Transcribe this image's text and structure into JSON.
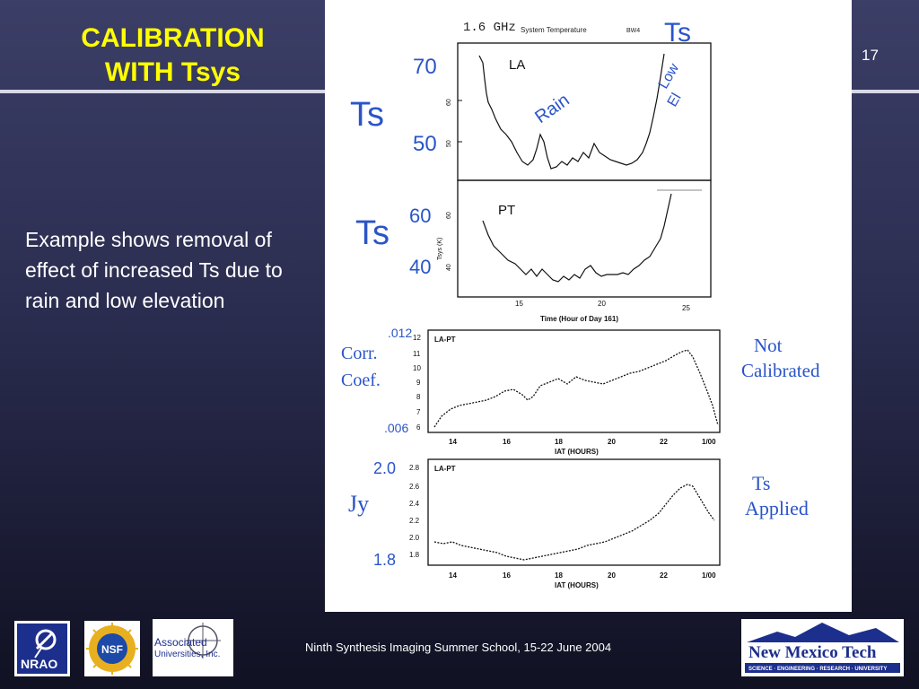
{
  "header": {
    "title_line1": "CALIBRATION",
    "title_line2": "WITH Tsys",
    "slide_number": "17"
  },
  "body": {
    "text": "Example shows removal of effect of increased Ts due to rain and low elevation"
  },
  "footer": {
    "text": "Ninth Synthesis Imaging Summer School, 15-22 June 2004"
  },
  "figure": {
    "top_header": {
      "freq": "1.6 GHz",
      "title": "System Temperature",
      "code": "BW4"
    },
    "handwritten": {
      "ts_top": "Ts",
      "ts_left1": "Ts",
      "ts_left2": "Ts",
      "rain": "Rain",
      "low": "Low",
      "el": "El",
      "corr": "Corr.",
      "coef": "Coef.",
      "not": "Not",
      "calibrated": "Calibrated",
      "ts_applied1": "Ts",
      "ts_applied2": "Applied",
      "jy": "Jy",
      "v70": "70",
      "v50": "50",
      "v60": "60",
      "v40": "40",
      "v012": ".012",
      "v006": ".006",
      "v20": "2.0",
      "v18": "1.8"
    },
    "panel_la": {
      "label": "LA",
      "ticks": [
        "50",
        "60"
      ]
    },
    "panel_pt": {
      "label": "PT",
      "ylabel": "Tsys (K)",
      "ticks": [
        "40",
        "60"
      ],
      "xticks": [
        "15",
        "20",
        "25"
      ],
      "xlabel": "Time (Hour of Day 161)"
    },
    "panel_corr": {
      "label": "LA-PT",
      "yticks": [
        "12",
        "11",
        "10",
        "9",
        "8",
        "7",
        "6"
      ],
      "xticks": [
        "14",
        "16",
        "18",
        "20",
        "22",
        "1/00"
      ],
      "xlabel": "IAT (HOURS)"
    },
    "panel_jy": {
      "label": "LA-PT",
      "yticks": [
        "2.8",
        "2.6",
        "2.4",
        "2.2",
        "2.0",
        "1.8"
      ],
      "xticks": [
        "14",
        "16",
        "18",
        "20",
        "22",
        "1/00"
      ],
      "xlabel": "IAT (HOURS)"
    }
  },
  "logos": {
    "nrao": "NRAO",
    "nsf": "NSF",
    "aui_line1": "Associated",
    "aui_line2": "Universities, Inc.",
    "nmt_name": "New Mexico Tech",
    "nmt_tagline": "SCIENCE · ENGINEERING · RESEARCH · UNIVERSITY"
  },
  "colors": {
    "title": "#ffff00",
    "handwriting": "#2a55c8",
    "plot_ink": "#111111"
  }
}
